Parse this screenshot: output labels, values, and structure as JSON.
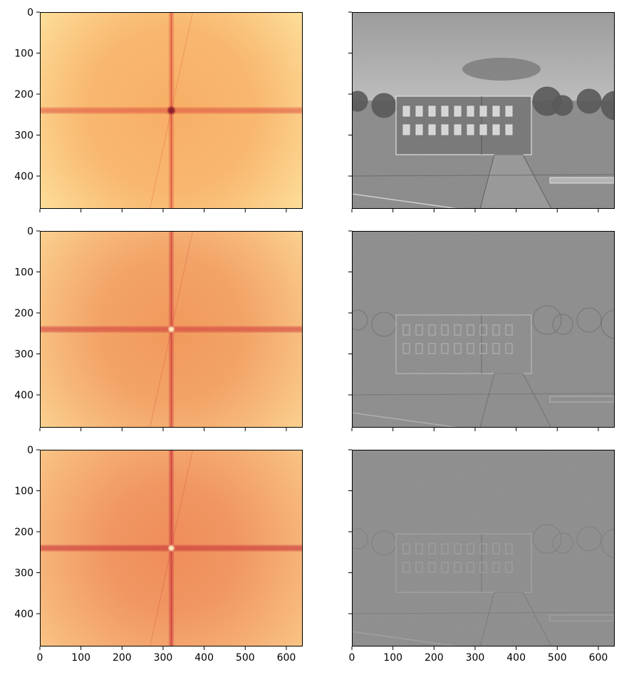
{
  "chart_data": {
    "type": "heatmap",
    "grid": {
      "rows": 3,
      "cols": 2
    },
    "image_size": {
      "width": 640,
      "height": 480
    },
    "xlim": [
      0,
      640
    ],
    "ylim": [
      480,
      0
    ],
    "x_ticks": [
      0,
      100,
      200,
      300,
      400,
      500,
      600
    ],
    "y_ticks": [
      0,
      100,
      200,
      300,
      400
    ],
    "x_tick_labels": [
      "0",
      "100",
      "200",
      "300",
      "400",
      "500",
      "600"
    ],
    "y_tick_labels": [
      "0",
      "100",
      "200",
      "300",
      "400"
    ],
    "x_tick_labels_shown_on": "bottom row only",
    "y_tick_labels_shown_on": "left column only",
    "spectrum_center": [
      320,
      240
    ],
    "left_colormap": "Spectral-like (yellow low, red high)",
    "right_colormap": "gray",
    "panels": [
      {
        "row": 0,
        "col": 0,
        "content": "log magnitude spectrum",
        "colors": {
          "low": "#fff2a8",
          "mid": "#f8b264",
          "high": "#d9463b"
        },
        "strength": 0.55,
        "center_dot": "dark"
      },
      {
        "row": 0,
        "col": 1,
        "content": "filtered image (grayscale, building scene)",
        "background": "#8a8a8a",
        "detail": 1.0
      },
      {
        "row": 1,
        "col": 0,
        "content": "log magnitude spectrum",
        "colors": {
          "low": "#fde49c",
          "mid": "#f19a5a",
          "high": "#cf3e3e"
        },
        "strength": 0.8,
        "center_dot": "light"
      },
      {
        "row": 1,
        "col": 1,
        "content": "filtered image (grayscale, edges)",
        "background": "#8d8d8d",
        "detail": 0.6
      },
      {
        "row": 2,
        "col": 0,
        "content": "log magnitude spectrum",
        "colors": {
          "low": "#fcd58e",
          "mid": "#ee8c55",
          "high": "#cb3a3e"
        },
        "strength": 1.0,
        "center_dot": "light"
      },
      {
        "row": 2,
        "col": 1,
        "content": "filtered image (grayscale, fine edges)",
        "background": "#8e8e8e",
        "detail": 0.35
      }
    ]
  }
}
